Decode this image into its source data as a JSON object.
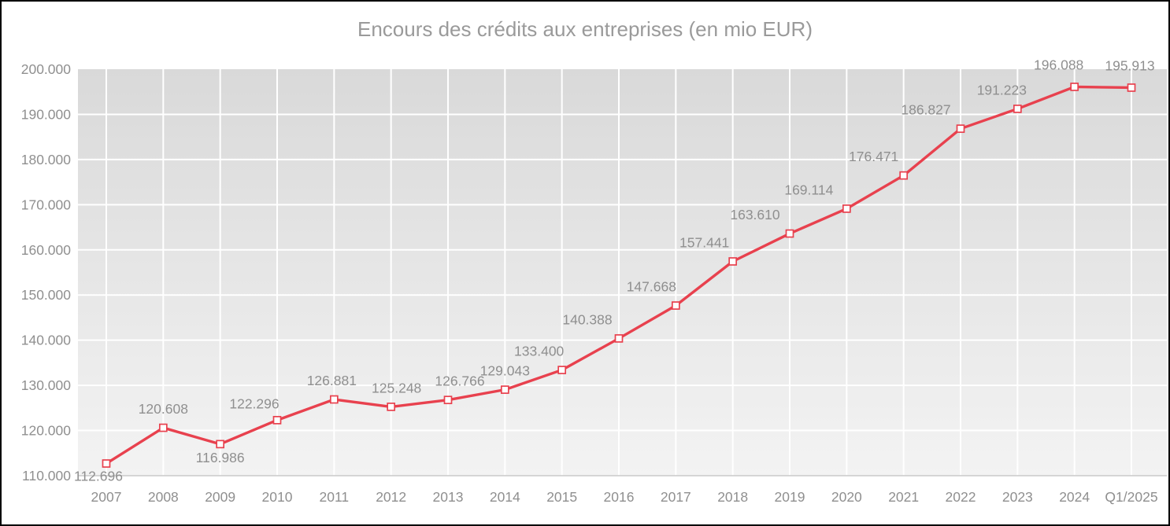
{
  "window": {
    "background": "#ffffff",
    "border_color": "#000000"
  },
  "chart_data": {
    "type": "line",
    "title": "Encours des crédits aux entreprises (en mio EUR)",
    "xlabel": "",
    "ylabel": "",
    "categories": [
      "2007",
      "2008",
      "2009",
      "2010",
      "2011",
      "2012",
      "2013",
      "2014",
      "2015",
      "2016",
      "2017",
      "2018",
      "2019",
      "2020",
      "2021",
      "2022",
      "2023",
      "2024",
      "Q1/2025"
    ],
    "series": [
      {
        "name": "Encours des crédits aux entreprises",
        "values": [
          112696,
          120608,
          116986,
          122296,
          126881,
          125248,
          126766,
          129043,
          133400,
          140388,
          147668,
          157441,
          163610,
          169114,
          176471,
          186827,
          191223,
          196088,
          195913
        ]
      }
    ],
    "point_labels": [
      "112.696",
      "120.608",
      "116.986",
      "122.296",
      "126.881",
      "125.248",
      "126.766",
      "129.043",
      "133.400",
      "140.388",
      "147.668",
      "157.441",
      "163.610",
      "169.114",
      "176.471",
      "186.827",
      "191.223",
      "196.088",
      "195.913"
    ],
    "ylim": [
      110000,
      200000
    ],
    "ytick_step": 10000,
    "ytick_labels": [
      "110.000",
      "120.000",
      "130.000",
      "140.000",
      "150.000",
      "160.000",
      "170.000",
      "180.000",
      "190.000",
      "200.000"
    ],
    "grid": true,
    "legend": false,
    "styles": {
      "line_color": "#e8414e",
      "marker_fill": "#ffffff",
      "marker_border": "#e8414e",
      "point_label_color": "#8f8f8f",
      "title_color": "#9a9a9a",
      "tick_color": "#8f8f8f",
      "grid_color": "#ffffff",
      "axis_line_color": "#c9c9c9",
      "plot_bg_top": "#d9d9d9",
      "plot_bg_bottom": "#f3f3f3"
    },
    "label_offsets": {
      "dx": [
        -10,
        0,
        0,
        -29,
        -3,
        7,
        15,
        0,
        -29,
        -40,
        -31,
        -36,
        -44,
        -48,
        -38,
        -44,
        -20,
        -20,
        -2
      ],
      "dy": [
        16,
        -24,
        17,
        -21,
        -24,
        -24,
        -24,
        -24,
        -24,
        -24,
        -24,
        -24,
        -24,
        -24,
        -24,
        -24,
        -24,
        -28,
        -28
      ]
    }
  }
}
